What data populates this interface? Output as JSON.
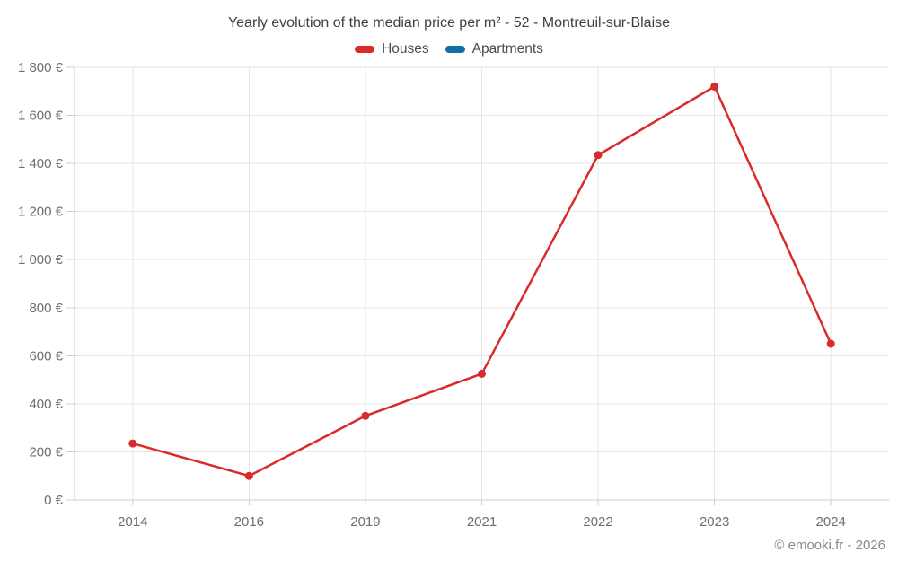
{
  "chart_data": {
    "type": "line",
    "title": "Yearly evolution of the median price per m² - 52 - Montreuil-sur-Blaise",
    "categories": [
      "2014",
      "2016",
      "2019",
      "2021",
      "2022",
      "2023",
      "2024"
    ],
    "series": [
      {
        "name": "Houses",
        "color": "#d92b2b",
        "values": [
          235,
          100,
          350,
          525,
          1435,
          1720,
          650
        ]
      },
      {
        "name": "Apartments",
        "color": "#0e70a5",
        "values": [
          null,
          null,
          null,
          null,
          null,
          null,
          null
        ]
      }
    ],
    "xlabel": "",
    "ylabel": "",
    "ylim": [
      0,
      1800
    ],
    "ytick_step": 200,
    "ytick_labels": [
      "0 €",
      "200 €",
      "400 €",
      "600 €",
      "800 €",
      "1 000 €",
      "1 200 €",
      "1 400 €",
      "1 600 €",
      "1 800 €"
    ],
    "grid": true,
    "legend_position": "top",
    "colors": {
      "grid": "#e6e6e6",
      "axis": "#cccccc",
      "title_text": "#3f3f3f",
      "tick_text": "#6e6e6e",
      "houses": "#d92b2b",
      "apartments": "#0e70a5"
    },
    "marker_radius": 4.5,
    "line_width": 2.5
  },
  "footer": {
    "credit": "© emooki.fr - 2026"
  }
}
